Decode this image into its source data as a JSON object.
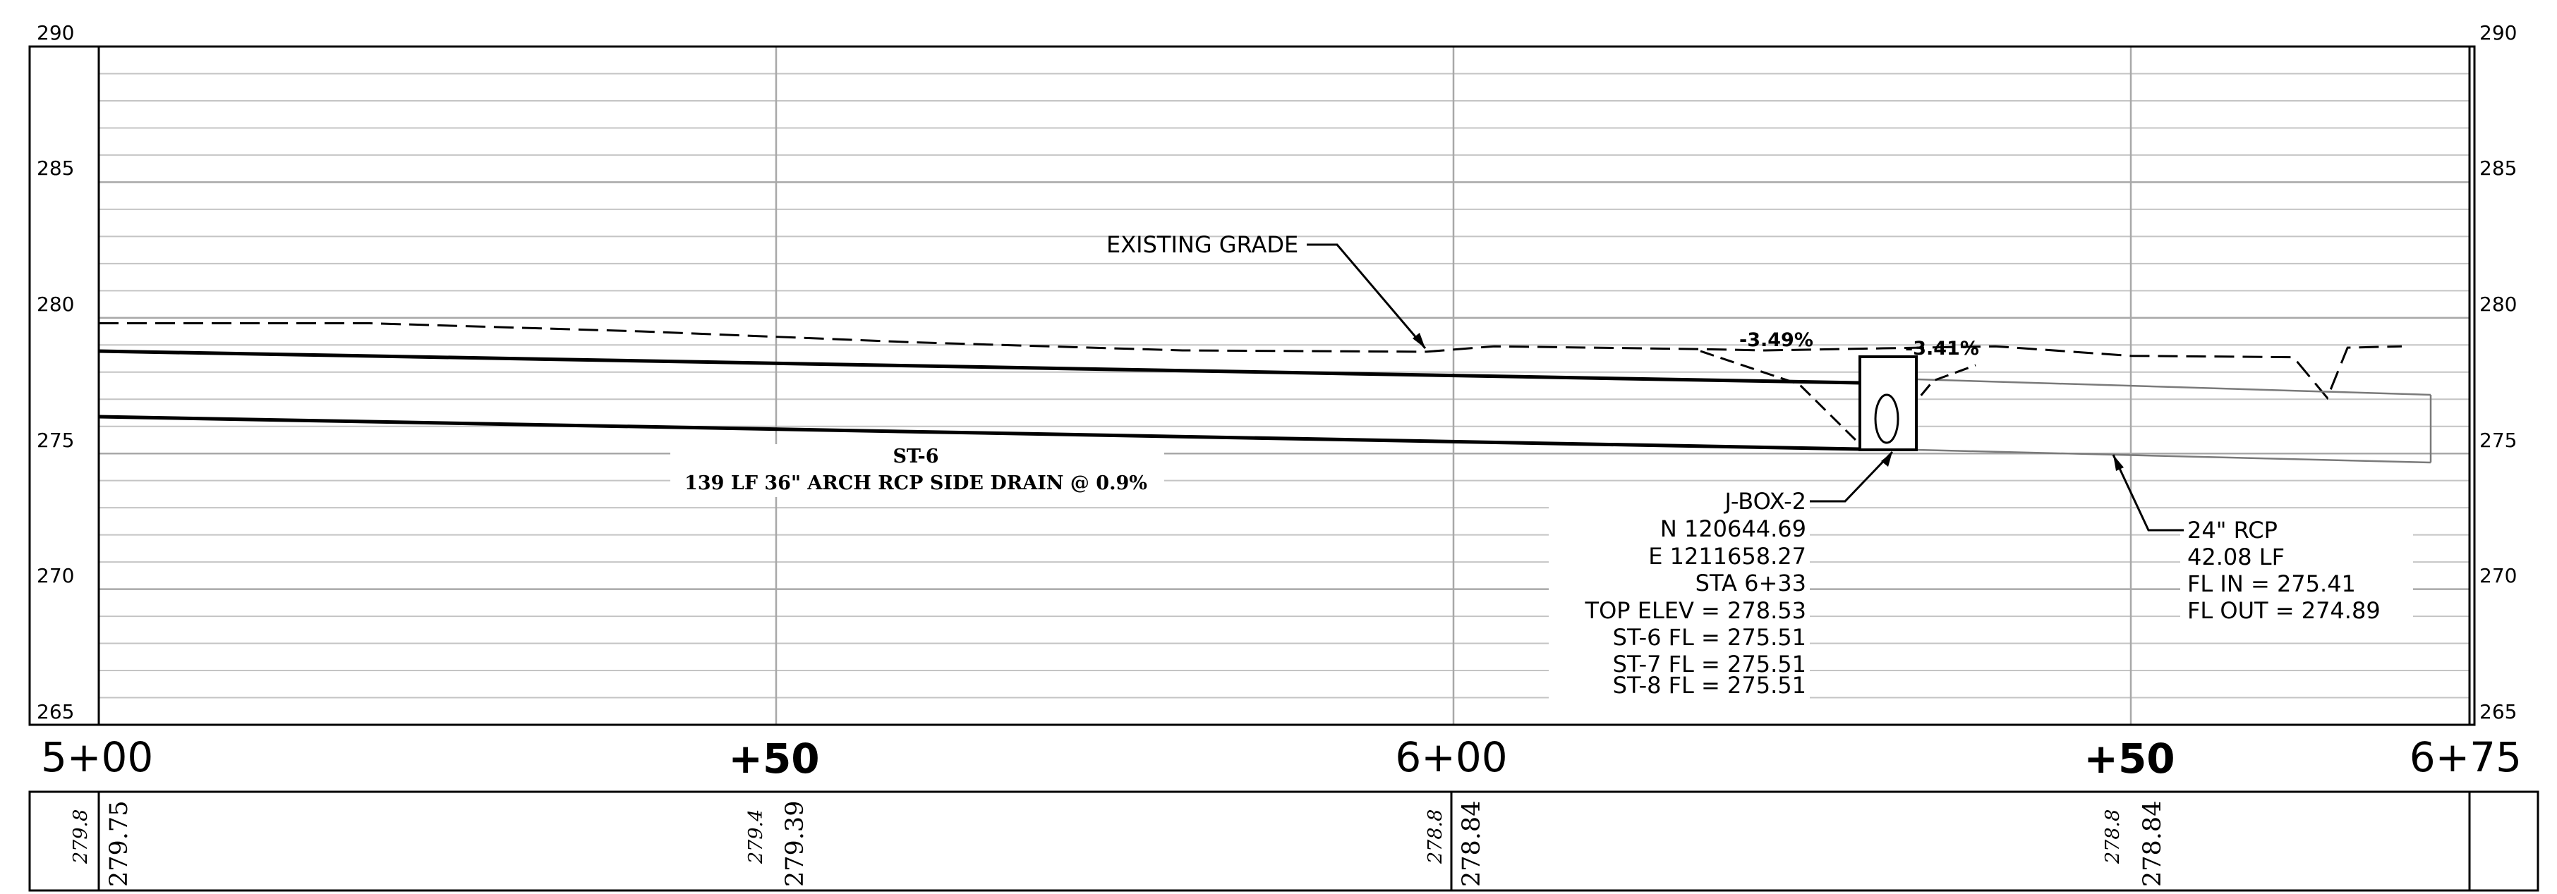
{
  "profile": {
    "elevation_labels": [
      "290",
      "285",
      "280",
      "275",
      "270",
      "265"
    ],
    "elevation_range": [
      265,
      290
    ],
    "station_labels": [
      "5+00",
      "+50",
      "6+00",
      "+50",
      "6+75"
    ],
    "station_range": [
      500,
      675
    ],
    "existing_grade_label": "EXISTING GRADE",
    "pipe_name": "ST-6",
    "pipe_description": "139 LF 36\" ARCH RCP SIDE DRAIN @ 0.9%",
    "slope_left": "-3.49%",
    "slope_right": "-3.41%",
    "junction_box": {
      "name": "J-BOX-2",
      "northing": "N 120644.69",
      "easting": "E 1211658.27",
      "station": "STA 6+33",
      "top_elev": "TOP ELEV = 278.53",
      "fl_lines": [
        "ST-6 FL = 275.51",
        "ST-7 FL = 275.51",
        "ST-8 FL = 275.51"
      ]
    },
    "rcp_callout": {
      "size": "24\" RCP",
      "length": "42.08 LF",
      "fl_in": "FL IN = 275.41",
      "fl_out": "FL OUT = 274.89"
    },
    "existing_grade": {
      "stations": [
        500,
        520,
        540,
        560,
        580,
        598,
        603,
        618,
        623,
        640,
        650,
        662,
        664.5,
        666,
        670
      ],
      "elevations": [
        279.8,
        279.8,
        279.5,
        279.1,
        278.8,
        278.75,
        278.95,
        278.85,
        278.8,
        278.95,
        278.6,
        278.55,
        277.05,
        278.9,
        278.95
      ]
    },
    "pipe_top": {
      "stations": [
        500,
        630
      ],
      "elevations": [
        278.75,
        277.6
      ]
    },
    "pipe_invert": {
      "stations": [
        500,
        633
      ],
      "elevations": [
        276.5,
        275.2
      ]
    },
    "bottom_band": {
      "existing": [
        "279.8",
        "279.4",
        "278.8",
        "278.8"
      ],
      "proposed": [
        "279.75",
        "279.39",
        "278.84",
        "278.84"
      ]
    }
  }
}
